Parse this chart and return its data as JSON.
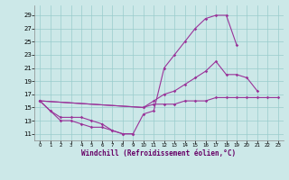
{
  "xlabel": "Windchill (Refroidissement éolien,°C)",
  "bg_color": "#cce8e8",
  "line_color": "#993399",
  "grid_color": "#99cccc",
  "xlim": [
    -0.5,
    23.5
  ],
  "ylim": [
    10,
    30.5
  ],
  "yticks": [
    11,
    13,
    15,
    17,
    19,
    21,
    23,
    25,
    27,
    29
  ],
  "xticks": [
    0,
    1,
    2,
    3,
    4,
    5,
    6,
    7,
    8,
    9,
    10,
    11,
    12,
    13,
    14,
    15,
    16,
    17,
    18,
    19,
    20,
    21,
    22,
    23
  ],
  "lines": [
    {
      "x": [
        0,
        1,
        2,
        3,
        4,
        5,
        6,
        7,
        8,
        9,
        10,
        11,
        12,
        13,
        14,
        15,
        16,
        17,
        18,
        19
      ],
      "y": [
        16,
        14.5,
        13.5,
        13.5,
        13.5,
        13,
        12.5,
        11.5,
        11,
        11,
        14,
        14.5,
        21,
        23,
        25,
        27,
        28.5,
        29,
        29,
        24.5
      ]
    },
    {
      "x": [
        0,
        1,
        2,
        3,
        4,
        5,
        6,
        7,
        8,
        9
      ],
      "y": [
        16,
        14.5,
        13,
        13,
        12.5,
        12,
        12,
        11.5,
        11,
        11
      ]
    },
    {
      "x": [
        0,
        10,
        11,
        12,
        13,
        14,
        15,
        16,
        17,
        18,
        19,
        20,
        21
      ],
      "y": [
        16,
        15,
        16,
        17,
        17.5,
        18.5,
        19.5,
        20.5,
        22,
        20,
        20,
        19.5,
        17.5
      ]
    },
    {
      "x": [
        0,
        10,
        11,
        12,
        13,
        14,
        15,
        16,
        17,
        18,
        19,
        20,
        21,
        22,
        23
      ],
      "y": [
        16,
        15,
        15.5,
        15.5,
        15.5,
        16,
        16,
        16,
        16.5,
        16.5,
        16.5,
        16.5,
        16.5,
        16.5,
        16.5
      ]
    }
  ]
}
